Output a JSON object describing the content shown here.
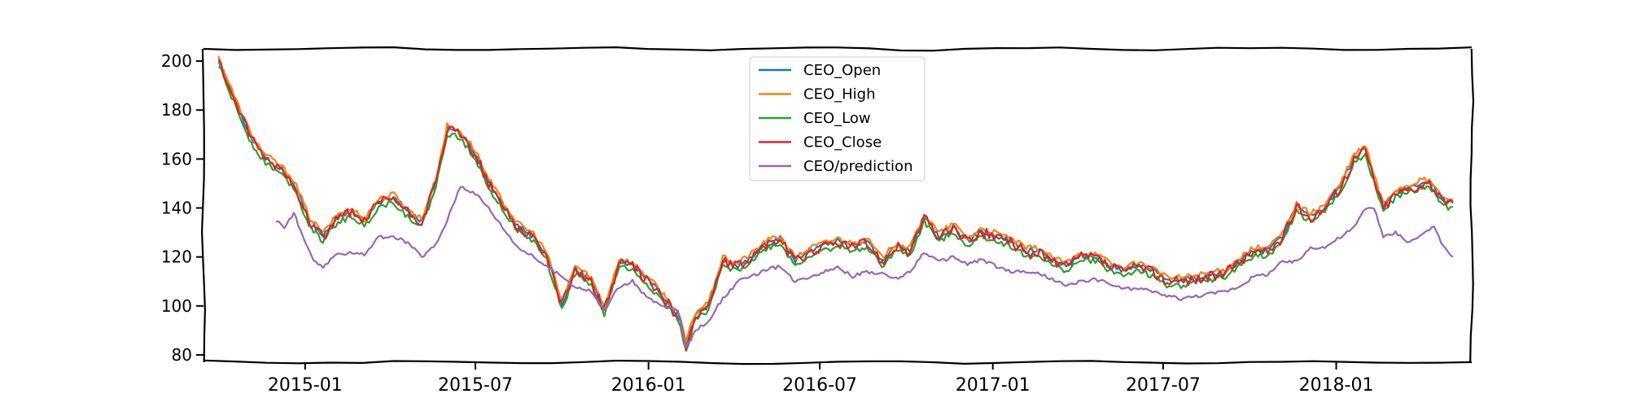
{
  "chart_data": {
    "type": "line",
    "style": "xkcd-wobbly",
    "xlim": [
      "2014-09-15",
      "2018-05-25"
    ],
    "ylim": [
      77,
      205
    ],
    "x_ticks": [
      "2015-01",
      "2015-07",
      "2016-01",
      "2016-07",
      "2017-01",
      "2017-07",
      "2018-01"
    ],
    "y_ticks": [
      80,
      100,
      120,
      140,
      160,
      180,
      200
    ],
    "legend_position": "top-center",
    "grid": false,
    "close_anchors": [
      [
        "2014-10-01",
        200
      ],
      [
        "2014-10-20",
        182
      ],
      [
        "2014-11-05",
        168
      ],
      [
        "2014-11-20",
        160
      ],
      [
        "2014-12-05",
        156
      ],
      [
        "2014-12-20",
        150
      ],
      [
        "2015-01-05",
        135
      ],
      [
        "2015-01-20",
        128
      ],
      [
        "2015-02-05",
        136
      ],
      [
        "2015-02-20",
        138
      ],
      [
        "2015-03-05",
        134
      ],
      [
        "2015-03-20",
        142
      ],
      [
        "2015-04-05",
        144
      ],
      [
        "2015-04-20",
        138
      ],
      [
        "2015-05-05",
        134
      ],
      [
        "2015-05-20",
        150
      ],
      [
        "2015-06-01",
        172
      ],
      [
        "2015-06-15",
        170
      ],
      [
        "2015-07-01",
        162
      ],
      [
        "2015-07-15",
        150
      ],
      [
        "2015-08-01",
        140
      ],
      [
        "2015-08-15",
        132
      ],
      [
        "2015-09-01",
        128
      ],
      [
        "2015-09-15",
        120
      ],
      [
        "2015-10-01",
        100
      ],
      [
        "2015-10-15",
        115
      ],
      [
        "2015-11-01",
        110
      ],
      [
        "2015-11-15",
        98
      ],
      [
        "2015-12-01",
        118
      ],
      [
        "2015-12-15",
        116
      ],
      [
        "2016-01-01",
        110
      ],
      [
        "2016-01-15",
        104
      ],
      [
        "2016-02-01",
        96
      ],
      [
        "2016-02-10",
        84
      ],
      [
        "2016-02-20",
        96
      ],
      [
        "2016-03-05",
        100
      ],
      [
        "2016-03-20",
        118
      ],
      [
        "2016-04-05",
        116
      ],
      [
        "2016-04-20",
        120
      ],
      [
        "2016-05-05",
        125
      ],
      [
        "2016-05-20",
        127
      ],
      [
        "2016-06-05",
        118
      ],
      [
        "2016-06-20",
        122
      ],
      [
        "2016-07-05",
        124
      ],
      [
        "2016-07-20",
        126
      ],
      [
        "2016-08-05",
        124
      ],
      [
        "2016-08-20",
        126
      ],
      [
        "2016-09-05",
        118
      ],
      [
        "2016-09-20",
        124
      ],
      [
        "2016-10-05",
        122
      ],
      [
        "2016-10-20",
        136
      ],
      [
        "2016-11-05",
        128
      ],
      [
        "2016-11-20",
        132
      ],
      [
        "2016-12-05",
        126
      ],
      [
        "2016-12-20",
        130
      ],
      [
        "2017-01-05",
        128
      ],
      [
        "2017-01-20",
        126
      ],
      [
        "2017-02-05",
        122
      ],
      [
        "2017-02-20",
        122
      ],
      [
        "2017-03-05",
        118
      ],
      [
        "2017-03-20",
        116
      ],
      [
        "2017-04-05",
        120
      ],
      [
        "2017-04-20",
        120
      ],
      [
        "2017-05-05",
        116
      ],
      [
        "2017-05-20",
        114
      ],
      [
        "2017-06-05",
        116
      ],
      [
        "2017-06-20",
        114
      ],
      [
        "2017-07-05",
        110
      ],
      [
        "2017-07-20",
        110
      ],
      [
        "2017-08-05",
        111
      ],
      [
        "2017-08-20",
        112
      ],
      [
        "2017-09-05",
        113
      ],
      [
        "2017-09-20",
        118
      ],
      [
        "2017-10-05",
        122
      ],
      [
        "2017-10-20",
        122
      ],
      [
        "2017-11-05",
        128
      ],
      [
        "2017-11-20",
        140
      ],
      [
        "2017-12-05",
        136
      ],
      [
        "2017-12-20",
        140
      ],
      [
        "2018-01-05",
        148
      ],
      [
        "2018-01-20",
        160
      ],
      [
        "2018-02-01",
        164
      ],
      [
        "2018-02-10",
        152
      ],
      [
        "2018-02-20",
        140
      ],
      [
        "2018-03-05",
        146
      ],
      [
        "2018-03-20",
        148
      ],
      [
        "2018-04-05",
        150
      ],
      [
        "2018-04-15",
        148
      ],
      [
        "2018-04-25",
        142
      ],
      [
        "2018-05-05",
        142
      ]
    ],
    "prediction_anchors": [
      [
        "2014-12-01",
        135
      ],
      [
        "2014-12-10",
        132
      ],
      [
        "2014-12-20",
        138
      ],
      [
        "2015-01-01",
        126
      ],
      [
        "2015-01-10",
        118
      ],
      [
        "2015-01-20",
        116
      ],
      [
        "2015-02-05",
        121
      ],
      [
        "2015-02-20",
        122
      ],
      [
        "2015-03-05",
        121
      ],
      [
        "2015-03-20",
        128
      ],
      [
        "2015-04-05",
        128
      ],
      [
        "2015-04-20",
        126
      ],
      [
        "2015-05-05",
        120
      ],
      [
        "2015-05-20",
        125
      ],
      [
        "2015-06-01",
        135
      ],
      [
        "2015-06-15",
        149
      ],
      [
        "2015-07-01",
        146
      ],
      [
        "2015-07-15",
        140
      ],
      [
        "2015-08-01",
        131
      ],
      [
        "2015-08-15",
        124
      ],
      [
        "2015-09-01",
        120
      ],
      [
        "2015-09-15",
        116
      ],
      [
        "2015-10-01",
        112
      ],
      [
        "2015-10-15",
        108
      ],
      [
        "2015-11-01",
        106
      ],
      [
        "2015-11-15",
        98
      ],
      [
        "2015-12-01",
        108
      ],
      [
        "2015-12-15",
        110
      ],
      [
        "2016-01-01",
        103
      ],
      [
        "2016-01-15",
        100
      ],
      [
        "2016-02-01",
        98
      ],
      [
        "2016-02-10",
        83
      ],
      [
        "2016-02-20",
        90
      ],
      [
        "2016-03-05",
        94
      ],
      [
        "2016-03-20",
        103
      ],
      [
        "2016-04-05",
        110
      ],
      [
        "2016-04-20",
        112
      ],
      [
        "2016-05-05",
        115
      ],
      [
        "2016-05-20",
        116
      ],
      [
        "2016-06-05",
        110
      ],
      [
        "2016-06-20",
        112
      ],
      [
        "2016-07-05",
        114
      ],
      [
        "2016-07-20",
        116
      ],
      [
        "2016-08-05",
        112
      ],
      [
        "2016-08-20",
        114
      ],
      [
        "2016-09-05",
        113
      ],
      [
        "2016-09-20",
        111
      ],
      [
        "2016-10-05",
        114
      ],
      [
        "2016-10-20",
        122
      ],
      [
        "2016-11-05",
        118
      ],
      [
        "2016-11-20",
        120
      ],
      [
        "2016-12-05",
        117
      ],
      [
        "2016-12-20",
        119
      ],
      [
        "2017-01-05",
        116
      ],
      [
        "2017-01-20",
        114
      ],
      [
        "2017-02-05",
        114
      ],
      [
        "2017-02-20",
        113
      ],
      [
        "2017-03-05",
        111
      ],
      [
        "2017-03-20",
        108
      ],
      [
        "2017-04-05",
        110
      ],
      [
        "2017-04-20",
        111
      ],
      [
        "2017-05-05",
        109
      ],
      [
        "2017-05-20",
        107
      ],
      [
        "2017-06-05",
        107
      ],
      [
        "2017-06-20",
        106
      ],
      [
        "2017-07-05",
        104
      ],
      [
        "2017-07-20",
        103
      ],
      [
        "2017-08-05",
        104
      ],
      [
        "2017-08-20",
        105
      ],
      [
        "2017-09-05",
        106
      ],
      [
        "2017-09-20",
        108
      ],
      [
        "2017-10-05",
        112
      ],
      [
        "2017-10-20",
        113
      ],
      [
        "2017-11-05",
        118
      ],
      [
        "2017-11-20",
        118
      ],
      [
        "2017-12-05",
        124
      ],
      [
        "2017-12-20",
        124
      ],
      [
        "2018-01-05",
        128
      ],
      [
        "2018-01-20",
        132
      ],
      [
        "2018-02-01",
        140
      ],
      [
        "2018-02-10",
        140
      ],
      [
        "2018-02-20",
        128
      ],
      [
        "2018-03-05",
        130
      ],
      [
        "2018-03-20",
        126
      ],
      [
        "2018-04-05",
        130
      ],
      [
        "2018-04-15",
        132
      ],
      [
        "2018-04-25",
        124
      ],
      [
        "2018-05-05",
        120
      ]
    ],
    "series": [
      {
        "name": "CEO_Open",
        "color": "#1f77b4",
        "source": "close_anchors",
        "offset": 0.5,
        "noise": 1.2
      },
      {
        "name": "CEO_High",
        "color": "#ff7f0e",
        "source": "close_anchors",
        "offset": 1.6,
        "noise": 1.2
      },
      {
        "name": "CEO_Low",
        "color": "#2ca02c",
        "source": "close_anchors",
        "offset": -1.6,
        "noise": 1.2
      },
      {
        "name": "CEO_Close",
        "color": "#d62728",
        "source": "close_anchors",
        "offset": 0,
        "noise": 2.2
      },
      {
        "name": "CEO/prediction",
        "color": "#9467bd",
        "source": "prediction_anchors",
        "offset": 0,
        "noise": 0.7
      }
    ]
  }
}
